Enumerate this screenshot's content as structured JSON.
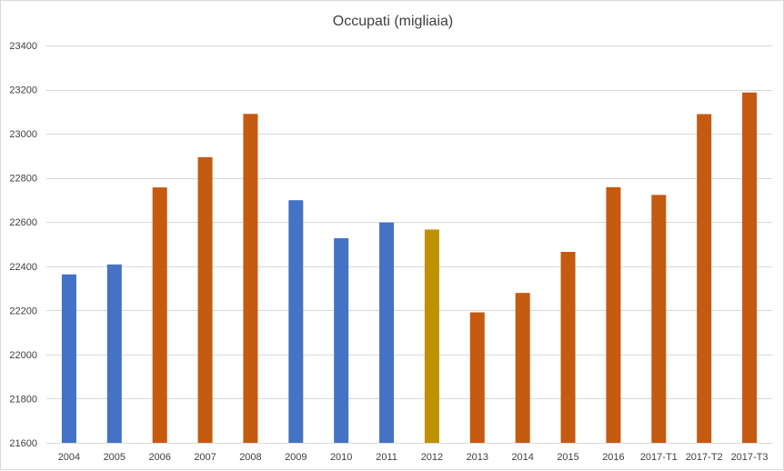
{
  "chart_data": {
    "type": "bar",
    "title": "Occupati (migliaia)",
    "xlabel": "",
    "ylabel": "",
    "ylim": [
      21600,
      23400
    ],
    "yticks": [
      21600,
      21800,
      22000,
      22200,
      22400,
      22600,
      22800,
      23000,
      23200,
      23400
    ],
    "grid": true,
    "legend": "none",
    "categories": [
      "2004",
      "2005",
      "2006",
      "2007",
      "2008",
      "2009",
      "2010",
      "2011",
      "2012",
      "2013",
      "2014",
      "2015",
      "2016",
      "2017-T1",
      "2017-T2",
      "2017-T3"
    ],
    "values": [
      22363,
      22408,
      22757,
      22894,
      23090,
      22699,
      22527,
      22598,
      22566,
      22191,
      22279,
      22465,
      22758,
      22723,
      23089,
      23187
    ],
    "bar_colors": [
      "#4472c4",
      "#4472c4",
      "#c55a11",
      "#c55a11",
      "#c55a11",
      "#4472c4",
      "#4472c4",
      "#4472c4",
      "#bf9000",
      "#c55a11",
      "#c55a11",
      "#c55a11",
      "#c55a11",
      "#c55a11",
      "#c55a11",
      "#c55a11"
    ]
  },
  "colors": {
    "gridline": "#d9d9d9",
    "text": "#404040",
    "blue": "#4472c4",
    "orange": "#c55a11",
    "gold": "#bf9000"
  }
}
